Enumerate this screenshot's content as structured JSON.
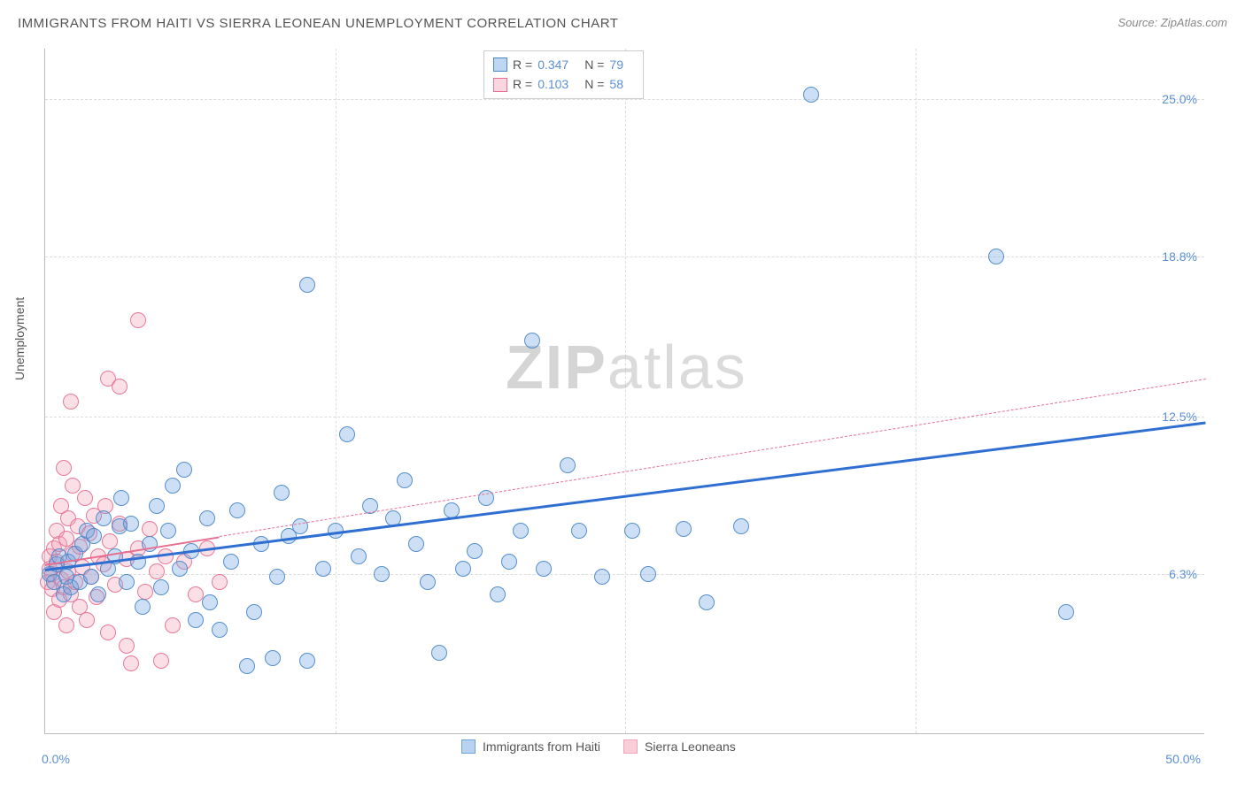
{
  "title": "IMMIGRANTS FROM HAITI VS SIERRA LEONEAN UNEMPLOYMENT CORRELATION CHART",
  "source_prefix": "Source: ",
  "source_name": "ZipAtlas.com",
  "y_axis_label": "Unemployment",
  "watermark_bold": "ZIP",
  "watermark_light": "atlas",
  "chart": {
    "type": "scatter",
    "x_domain": [
      0,
      50
    ],
    "y_domain": [
      0,
      27
    ],
    "background_color": "#ffffff",
    "grid_color": "#dddddd",
    "axis_color": "#bbbbbb",
    "x_ticks": [
      {
        "v": 0.0,
        "label": "0.0%"
      },
      {
        "v": 12.5,
        "label": ""
      },
      {
        "v": 25.0,
        "label": ""
      },
      {
        "v": 37.5,
        "label": ""
      },
      {
        "v": 50.0,
        "label": "50.0%"
      }
    ],
    "y_ticks": [
      {
        "v": 6.3,
        "label": "6.3%"
      },
      {
        "v": 12.5,
        "label": "12.5%"
      },
      {
        "v": 18.8,
        "label": "18.8%"
      },
      {
        "v": 25.0,
        "label": "25.0%"
      }
    ],
    "point_radius": 9,
    "point_fill_opacity": 0.35,
    "point_stroke_opacity": 0.9,
    "point_stroke_width": 1,
    "series": [
      {
        "name": "Immigrants from Haiti",
        "color": "#6fa3e0",
        "stroke": "#4a86c9",
        "R_label": "R =",
        "R": "0.347",
        "N_label": "N =",
        "N": "79",
        "trend": {
          "x1": 0,
          "y1": 6.5,
          "x2": 50,
          "y2": 12.3,
          "color": "#2e6fd1",
          "width": 3,
          "dash": false
        },
        "trend_ext": null,
        "points": [
          [
            0.2,
            6.3
          ],
          [
            0.4,
            6.0
          ],
          [
            0.5,
            6.7
          ],
          [
            0.6,
            7.0
          ],
          [
            0.8,
            5.5
          ],
          [
            0.9,
            6.2
          ],
          [
            1.0,
            6.8
          ],
          [
            1.1,
            5.8
          ],
          [
            1.3,
            7.1
          ],
          [
            1.5,
            6.0
          ],
          [
            1.6,
            7.5
          ],
          [
            1.8,
            8.0
          ],
          [
            2.0,
            6.2
          ],
          [
            2.1,
            7.8
          ],
          [
            2.3,
            5.5
          ],
          [
            2.5,
            8.5
          ],
          [
            2.7,
            6.5
          ],
          [
            3.0,
            7.0
          ],
          [
            3.2,
            8.2
          ],
          [
            3.3,
            9.3
          ],
          [
            3.5,
            6.0
          ],
          [
            3.7,
            8.3
          ],
          [
            4.0,
            6.8
          ],
          [
            4.2,
            5.0
          ],
          [
            4.5,
            7.5
          ],
          [
            4.8,
            9.0
          ],
          [
            5.0,
            5.8
          ],
          [
            5.3,
            8.0
          ],
          [
            5.5,
            9.8
          ],
          [
            5.8,
            6.5
          ],
          [
            6.0,
            10.4
          ],
          [
            6.3,
            7.2
          ],
          [
            6.5,
            4.5
          ],
          [
            7.0,
            8.5
          ],
          [
            7.1,
            5.2
          ],
          [
            7.5,
            4.1
          ],
          [
            8.0,
            6.8
          ],
          [
            8.3,
            8.8
          ],
          [
            8.7,
            2.7
          ],
          [
            9.0,
            4.8
          ],
          [
            9.3,
            7.5
          ],
          [
            9.8,
            3.0
          ],
          [
            10.0,
            6.2
          ],
          [
            10.2,
            9.5
          ],
          [
            10.5,
            7.8
          ],
          [
            11.0,
            8.2
          ],
          [
            11.3,
            2.9
          ],
          [
            11.3,
            17.7
          ],
          [
            12.0,
            6.5
          ],
          [
            12.5,
            8.0
          ],
          [
            13.0,
            11.8
          ],
          [
            13.5,
            7.0
          ],
          [
            14.0,
            9.0
          ],
          [
            14.5,
            6.3
          ],
          [
            15.0,
            8.5
          ],
          [
            15.5,
            10.0
          ],
          [
            16.0,
            7.5
          ],
          [
            16.5,
            6.0
          ],
          [
            17.0,
            3.2
          ],
          [
            17.5,
            8.8
          ],
          [
            18.0,
            6.5
          ],
          [
            18.5,
            7.2
          ],
          [
            19.0,
            9.3
          ],
          [
            19.5,
            5.5
          ],
          [
            20.0,
            6.8
          ],
          [
            20.5,
            8.0
          ],
          [
            21.0,
            15.5
          ],
          [
            21.5,
            6.5
          ],
          [
            22.5,
            10.6
          ],
          [
            23.0,
            8.0
          ],
          [
            24.0,
            6.2
          ],
          [
            25.3,
            8.0
          ],
          [
            26.0,
            6.3
          ],
          [
            27.5,
            8.1
          ],
          [
            28.5,
            5.2
          ],
          [
            30.0,
            8.2
          ],
          [
            33.0,
            25.2
          ],
          [
            41.0,
            18.8
          ],
          [
            44.0,
            4.8
          ]
        ]
      },
      {
        "name": "Sierra Leoneans",
        "color": "#f2a3b8",
        "stroke": "#e76f91",
        "R_label": "R =",
        "R": "0.103",
        "N_label": "N =",
        "N": "58",
        "trend": {
          "x1": 0,
          "y1": 6.7,
          "x2": 7.5,
          "y2": 7.8,
          "color": "#e76f91",
          "width": 2,
          "dash": false
        },
        "trend_ext": {
          "x1": 7.5,
          "y1": 7.8,
          "x2": 50,
          "y2": 14.0,
          "color": "#e76f91",
          "width": 1,
          "dash": true
        },
        "points": [
          [
            0.1,
            6.0
          ],
          [
            0.2,
            6.5
          ],
          [
            0.2,
            7.0
          ],
          [
            0.3,
            5.7
          ],
          [
            0.3,
            6.3
          ],
          [
            0.4,
            7.3
          ],
          [
            0.4,
            4.8
          ],
          [
            0.5,
            6.8
          ],
          [
            0.5,
            8.0
          ],
          [
            0.6,
            5.3
          ],
          [
            0.6,
            7.5
          ],
          [
            0.7,
            9.0
          ],
          [
            0.7,
            6.1
          ],
          [
            0.8,
            10.5
          ],
          [
            0.8,
            5.8
          ],
          [
            0.9,
            7.7
          ],
          [
            0.9,
            4.3
          ],
          [
            1.0,
            8.5
          ],
          [
            1.0,
            6.4
          ],
          [
            1.1,
            13.1
          ],
          [
            1.1,
            5.5
          ],
          [
            1.2,
            7.1
          ],
          [
            1.2,
            9.8
          ],
          [
            1.3,
            6.0
          ],
          [
            1.4,
            8.2
          ],
          [
            1.5,
            5.0
          ],
          [
            1.5,
            7.4
          ],
          [
            1.6,
            6.6
          ],
          [
            1.7,
            9.3
          ],
          [
            1.8,
            4.5
          ],
          [
            1.9,
            7.9
          ],
          [
            2.0,
            6.2
          ],
          [
            2.1,
            8.6
          ],
          [
            2.2,
            5.4
          ],
          [
            2.3,
            7.0
          ],
          [
            2.5,
            6.7
          ],
          [
            2.6,
            9.0
          ],
          [
            2.7,
            4.0
          ],
          [
            2.7,
            14.0
          ],
          [
            2.8,
            7.6
          ],
          [
            3.0,
            5.9
          ],
          [
            3.2,
            13.7
          ],
          [
            3.2,
            8.3
          ],
          [
            3.5,
            3.5
          ],
          [
            3.5,
            6.9
          ],
          [
            3.7,
            2.8
          ],
          [
            4.0,
            16.3
          ],
          [
            4.0,
            7.3
          ],
          [
            4.3,
            5.6
          ],
          [
            4.5,
            8.1
          ],
          [
            4.8,
            6.4
          ],
          [
            5.0,
            2.9
          ],
          [
            5.2,
            7.0
          ],
          [
            5.5,
            4.3
          ],
          [
            6.0,
            6.8
          ],
          [
            6.5,
            5.5
          ],
          [
            7.0,
            7.3
          ],
          [
            7.5,
            6.0
          ]
        ]
      }
    ]
  },
  "legend_bottom": [
    {
      "label": "Immigrants from Haiti",
      "fill": "#b9d2ef",
      "stroke": "#6fa3e0"
    },
    {
      "label": "Sierra Leoneans",
      "fill": "#f8cfd9",
      "stroke": "#f2a3b8"
    }
  ]
}
